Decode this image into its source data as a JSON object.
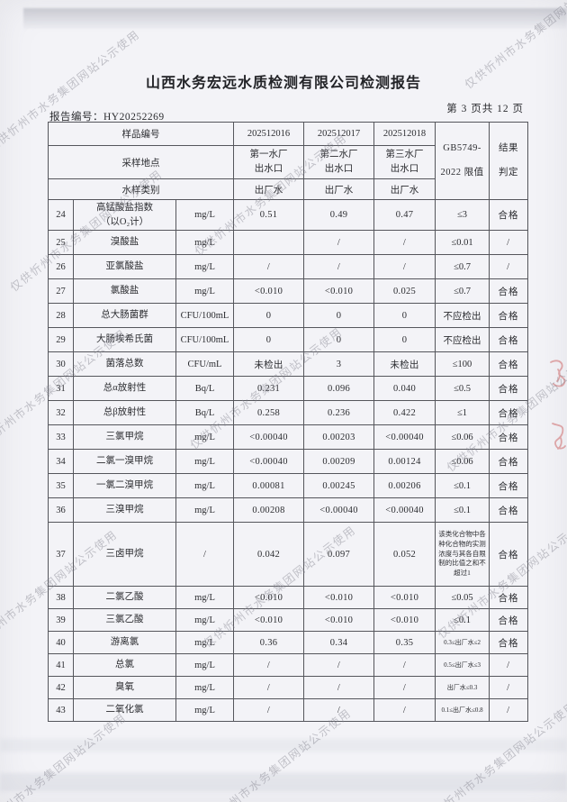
{
  "page": {
    "title": "山西水务宏远水质检测有限公司检测报告",
    "report_no": "报告编号：HY20252269",
    "page_indicator": "第 3 页共 12 页"
  },
  "watermark": {
    "text": "仅供忻州市水务集团网站公示使用",
    "color": "#84848f"
  },
  "stamp": {
    "color": "#cf6a6a"
  },
  "table": {
    "header": {
      "row1_label": "样品编号",
      "sample_ids": [
        "202512016",
        "202512017",
        "202512018"
      ],
      "row2_label": "采样地点",
      "locations": [
        "第一水厂\n出水口",
        "第二水厂\n出水口",
        "第三水厂\n出水口"
      ],
      "row3_label": "水样类别",
      "types": [
        "出厂水",
        "出厂水",
        "出厂水"
      ],
      "standard": "GB5749-\n2022 限值",
      "result": "结果\n判定"
    },
    "rows": [
      {
        "num": "24",
        "name": "高锰酸盐指数\n（以O₂计）",
        "unit": "mg/L",
        "v1": "0.51",
        "v2": "0.49",
        "v3": "0.47",
        "limit": "≤3",
        "result": "合格"
      },
      {
        "num": "25",
        "name": "溴酸盐",
        "unit": "mg/L",
        "v1": "",
        "v2": "/",
        "v3": "/",
        "limit": "≤0.01",
        "result": "/"
      },
      {
        "num": "26",
        "name": "亚氯酸盐",
        "unit": "mg/L",
        "v1": "/",
        "v2": "/",
        "v3": "/",
        "limit": "≤0.7",
        "result": "/"
      },
      {
        "num": "27",
        "name": "氯酸盐",
        "unit": "mg/L",
        "v1": "<0.010",
        "v2": "<0.010",
        "v3": "0.025",
        "limit": "≤0.7",
        "result": "合格"
      },
      {
        "num": "28",
        "name": "总大肠菌群",
        "unit": "CFU/100mL",
        "v1": "0",
        "v2": "0",
        "v3": "0",
        "limit": "不应检出",
        "result": "合格"
      },
      {
        "num": "29",
        "name": "大肠埃希氏菌",
        "unit": "CFU/100mL",
        "v1": "0",
        "v2": "0",
        "v3": "0",
        "limit": "不应检出",
        "result": "合格"
      },
      {
        "num": "30",
        "name": "菌落总数",
        "unit": "CFU/mL",
        "v1": "未检出",
        "v2": "3",
        "v3": "未检出",
        "limit": "≤100",
        "result": "合格"
      },
      {
        "num": "31",
        "name": "总α放射性",
        "unit": "Bq/L",
        "v1": "0.231",
        "v2": "0.096",
        "v3": "0.040",
        "limit": "≤0.5",
        "result": "合格"
      },
      {
        "num": "32",
        "name": "总β放射性",
        "unit": "Bq/L",
        "v1": "0.258",
        "v2": "0.236",
        "v3": "0.422",
        "limit": "≤1",
        "result": "合格"
      },
      {
        "num": "33",
        "name": "三氯甲烷",
        "unit": "mg/L",
        "v1": "<0.00040",
        "v2": "0.00203",
        "v3": "<0.00040",
        "limit": "≤0.06",
        "result": "合格"
      },
      {
        "num": "34",
        "name": "二氯一溴甲烷",
        "unit": "mg/L",
        "v1": "<0.00040",
        "v2": "0.00209",
        "v3": "0.00124",
        "limit": "≤0.06",
        "result": "合格"
      },
      {
        "num": "35",
        "name": "一氯二溴甲烷",
        "unit": "mg/L",
        "v1": "0.00081",
        "v2": "0.00245",
        "v3": "0.00206",
        "limit": "≤0.1",
        "result": "合格"
      },
      {
        "num": "36",
        "name": "三溴甲烷",
        "unit": "mg/L",
        "v1": "0.00208",
        "v2": "<0.00040",
        "v3": "<0.00040",
        "limit": "≤0.1",
        "result": "合格"
      },
      {
        "num": "37",
        "name": "三卤甲烷",
        "unit": "/",
        "v1": "0.042",
        "v2": "0.097",
        "v3": "0.052",
        "limit": "该类化合物中各种化合物的实测浓度与其各自限制的比值之和不超过1",
        "result": "合格"
      },
      {
        "num": "38",
        "name": "二氯乙酸",
        "unit": "mg/L",
        "v1": "<0.010",
        "v2": "<0.010",
        "v3": "<0.010",
        "limit": "≤0.05",
        "result": "合格"
      },
      {
        "num": "39",
        "name": "三氯乙酸",
        "unit": "mg/L",
        "v1": "<0.010",
        "v2": "<0.010",
        "v3": "<0.010",
        "limit": "≤0.1",
        "result": "合格"
      },
      {
        "num": "40",
        "name": "游离氯",
        "unit": "mg/L",
        "v1": "0.36",
        "v2": "0.34",
        "v3": "0.35",
        "limit": "0.3≤出厂水≤2",
        "result": "合格"
      },
      {
        "num": "41",
        "name": "总氯",
        "unit": "mg/L",
        "v1": "/",
        "v2": "/",
        "v3": "/",
        "limit": "0.5≤出厂水≤3",
        "result": "/"
      },
      {
        "num": "42",
        "name": "臭氧",
        "unit": "mg/L",
        "v1": "/",
        "v2": "/",
        "v3": "/",
        "limit": "出厂水≤0.3",
        "result": "/"
      },
      {
        "num": "43",
        "name": "二氧化氯",
        "unit": "mg/L",
        "v1": "/",
        "v2": "/",
        "v3": "/",
        "limit": "0.1≤出厂水≤0.8",
        "result": "/"
      }
    ]
  }
}
